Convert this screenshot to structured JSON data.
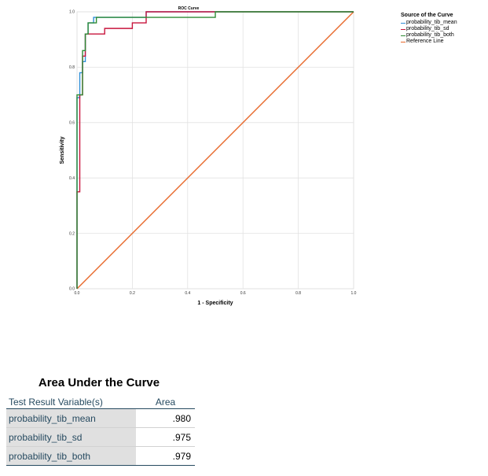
{
  "chart_data": {
    "type": "line",
    "title": "ROC Curve",
    "xlabel": "1 - Specificity",
    "ylabel": "Sensitivity",
    "xlim": [
      0,
      1
    ],
    "ylim": [
      0,
      1
    ],
    "x_ticks": [
      0.0,
      0.2,
      0.4,
      0.6,
      0.8,
      1.0
    ],
    "y_ticks": [
      0.0,
      0.2,
      0.4,
      0.6,
      0.8,
      1.0
    ],
    "x_tick_labels": [
      "0.0",
      "0.2",
      "0.4",
      "0.6",
      "0.8",
      "1.0"
    ],
    "y_tick_labels": [
      "0.0",
      "0.2",
      "0.4",
      "0.6",
      "0.8",
      "1.0"
    ],
    "grid": true,
    "legend_title": "Source of the Curve",
    "legend_position": "top-right",
    "series": [
      {
        "name": "probability_tib_mean",
        "color": "#2f8fd8",
        "points": [
          [
            0,
            0
          ],
          [
            0,
            0.35
          ],
          [
            0,
            0.69
          ],
          [
            0.01,
            0.69
          ],
          [
            0.01,
            0.78
          ],
          [
            0.02,
            0.78
          ],
          [
            0.02,
            0.82
          ],
          [
            0.03,
            0.82
          ],
          [
            0.03,
            0.92
          ],
          [
            0.04,
            0.92
          ],
          [
            0.04,
            0.96
          ],
          [
            0.06,
            0.96
          ],
          [
            0.06,
            0.98
          ],
          [
            0.1,
            0.98
          ],
          [
            0.1,
            0.98
          ],
          [
            0.25,
            0.98
          ],
          [
            0.25,
            1.0
          ],
          [
            1,
            1
          ]
        ]
      },
      {
        "name": "probability_tib_sd",
        "color": "#c8143c",
        "points": [
          [
            0,
            0
          ],
          [
            0,
            0.35
          ],
          [
            0.01,
            0.35
          ],
          [
            0.01,
            0.45
          ],
          [
            0.01,
            0.7
          ],
          [
            0.02,
            0.7
          ],
          [
            0.02,
            0.75
          ],
          [
            0.02,
            0.84
          ],
          [
            0.03,
            0.84
          ],
          [
            0.03,
            0.86
          ],
          [
            0.03,
            0.92
          ],
          [
            0.06,
            0.92
          ],
          [
            0.06,
            0.92
          ],
          [
            0.1,
            0.92
          ],
          [
            0.1,
            0.94
          ],
          [
            0.2,
            0.94
          ],
          [
            0.2,
            0.96
          ],
          [
            0.25,
            0.96
          ],
          [
            0.25,
            1.0
          ],
          [
            1,
            1
          ]
        ]
      },
      {
        "name": "probability_tib_both",
        "color": "#2e8b34",
        "points": [
          [
            0,
            0
          ],
          [
            0,
            0.45
          ],
          [
            0,
            0.7
          ],
          [
            0.02,
            0.7
          ],
          [
            0.02,
            0.86
          ],
          [
            0.03,
            0.86
          ],
          [
            0.03,
            0.92
          ],
          [
            0.04,
            0.92
          ],
          [
            0.04,
            0.96
          ],
          [
            0.07,
            0.96
          ],
          [
            0.07,
            0.98
          ],
          [
            0.5,
            0.98
          ],
          [
            0.5,
            1.0
          ],
          [
            1,
            1
          ]
        ]
      },
      {
        "name": "Reference Line",
        "color": "#e8692c",
        "points": [
          [
            0,
            0
          ],
          [
            1,
            1
          ]
        ]
      }
    ]
  },
  "auc_table": {
    "title": "Area Under the Curve",
    "header_variable": "Test Result Variable(s)",
    "header_area": "Area",
    "rows": [
      {
        "variable": "probability_tib_mean",
        "area": ".980"
      },
      {
        "variable": "probability_tib_sd",
        "area": ".975"
      },
      {
        "variable": "probability_tib_both",
        "area": ".979"
      }
    ]
  }
}
